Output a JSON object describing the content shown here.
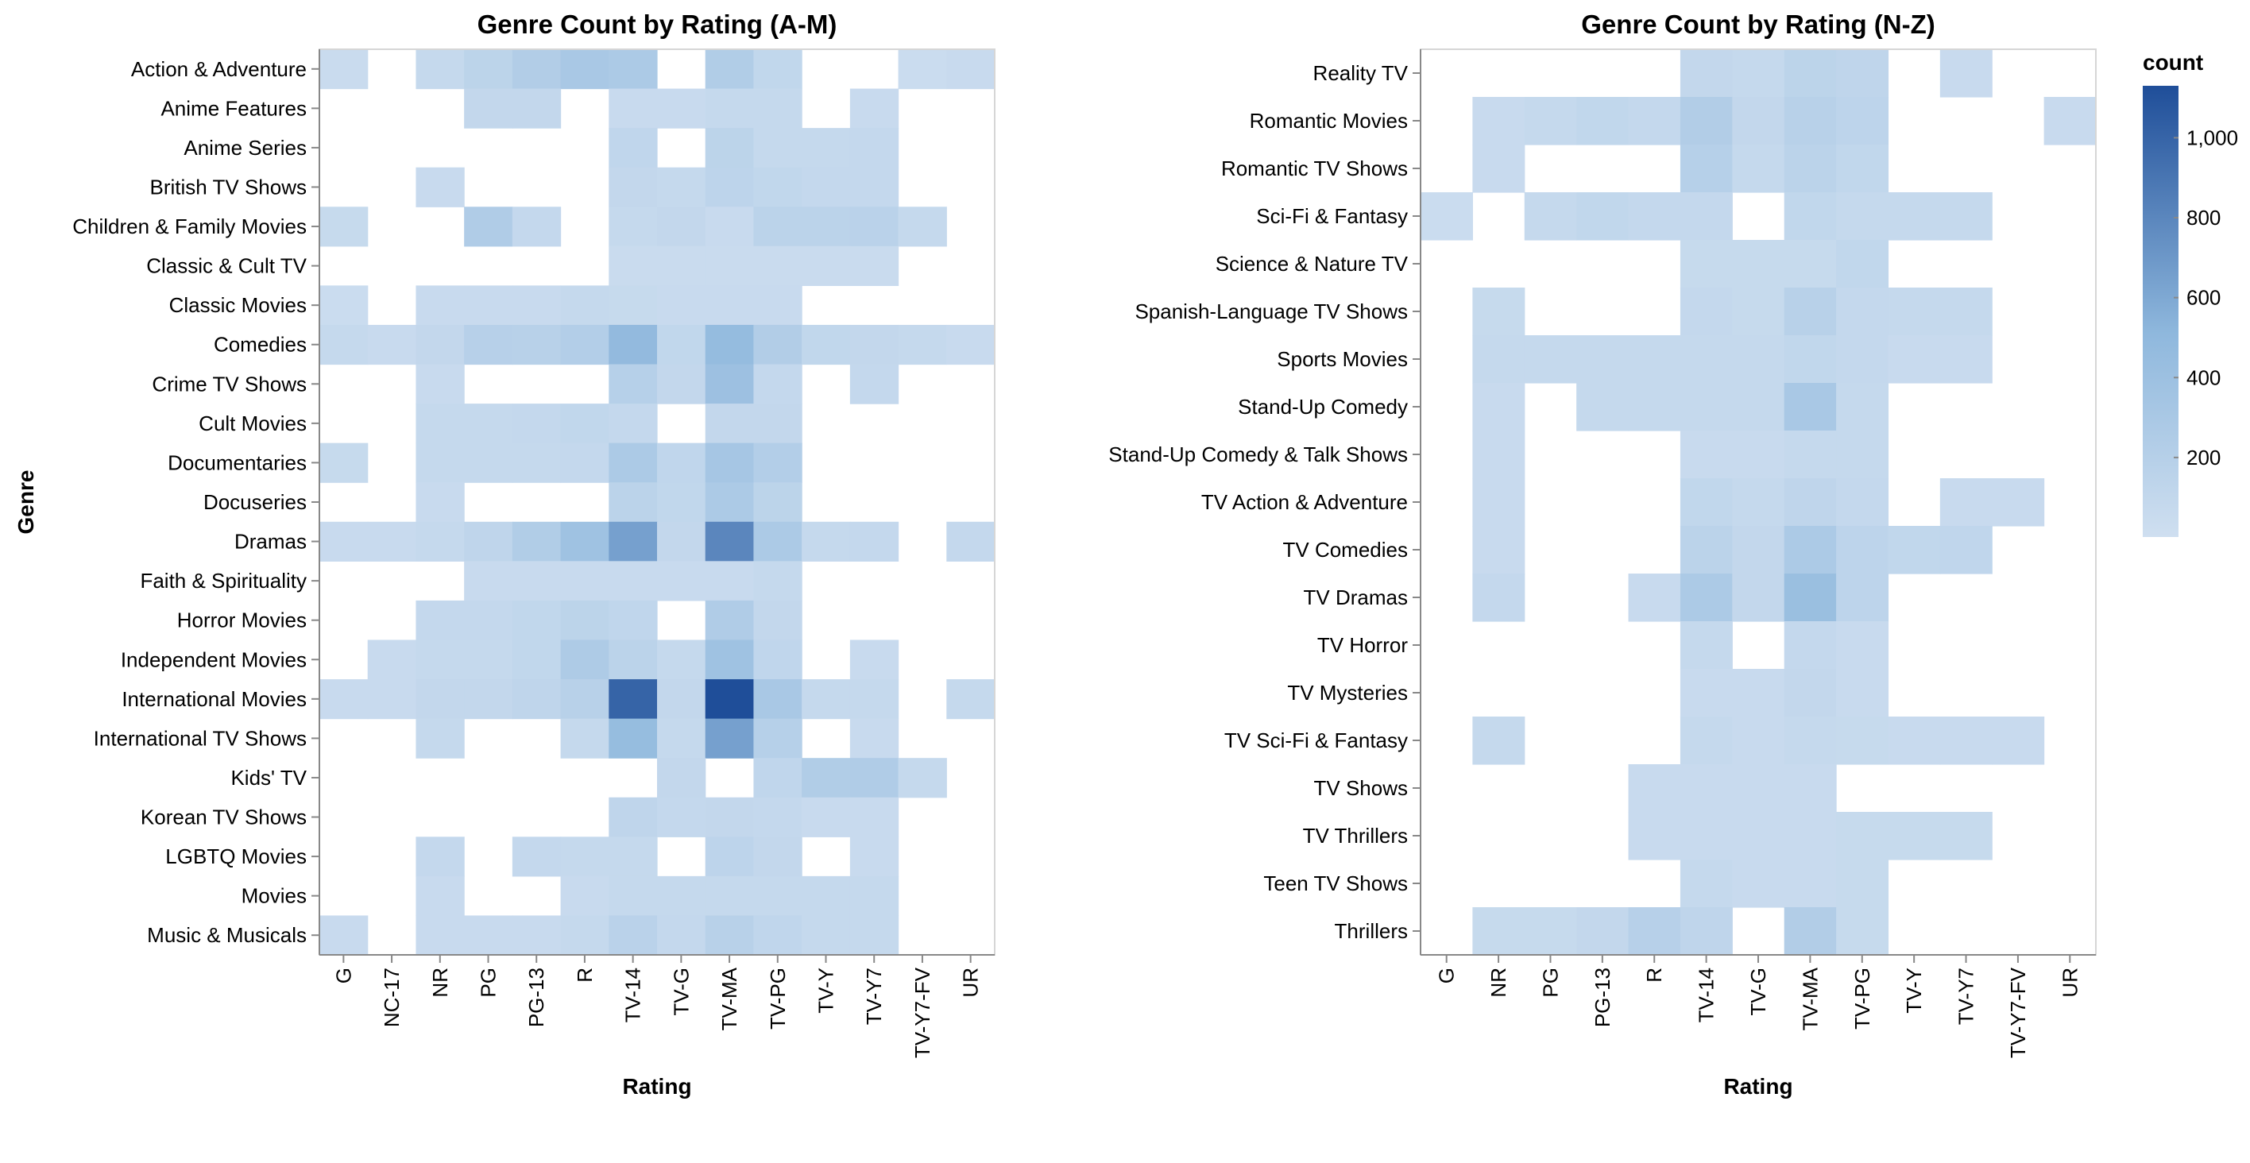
{
  "chart_data": [
    {
      "type": "heatmap",
      "title": "Genre Count by Rating (A-M)",
      "xlabel": "Rating",
      "ylabel": "Genre",
      "x_categories": [
        "G",
        "NC-17",
        "NR",
        "PG",
        "PG-13",
        "R",
        "TV-14",
        "TV-G",
        "TV-MA",
        "TV-PG",
        "TV-Y",
        "TV-Y7",
        "TV-Y7-FV",
        "UR"
      ],
      "y_categories": [
        "Action & Adventure",
        "Anime Features",
        "Anime Series",
        "British TV Shows",
        "Children & Family Movies",
        "Classic & Cult TV",
        "Classic Movies",
        "Comedies",
        "Crime TV Shows",
        "Cult Movies",
        "Documentaries",
        "Docuseries",
        "Dramas",
        "Faith & Spirituality",
        "Horror Movies",
        "Independent Movies",
        "International Movies",
        "International TV Shows",
        "Kids' TV",
        "Korean TV Shows",
        "LGBTQ Movies",
        "Movies",
        "Music & Musicals"
      ],
      "values": [
        [
          50,
          null,
          80,
          150,
          230,
          300,
          280,
          null,
          240,
          110,
          null,
          null,
          40,
          60
        ],
        [
          null,
          null,
          null,
          100,
          100,
          null,
          60,
          60,
          80,
          80,
          null,
          60,
          null,
          null
        ],
        [
          null,
          null,
          null,
          null,
          null,
          null,
          120,
          null,
          150,
          80,
          80,
          90,
          null,
          null
        ],
        [
          null,
          null,
          60,
          null,
          null,
          null,
          100,
          80,
          140,
          110,
          90,
          90,
          null,
          null
        ],
        [
          70,
          null,
          null,
          250,
          90,
          null,
          80,
          100,
          60,
          160,
          160,
          170,
          80,
          null
        ],
        [
          null,
          null,
          null,
          null,
          null,
          null,
          50,
          50,
          50,
          50,
          50,
          50,
          null,
          null
        ],
        [
          40,
          null,
          60,
          60,
          60,
          80,
          70,
          60,
          60,
          60,
          null,
          null,
          null,
          null
        ],
        [
          80,
          60,
          100,
          190,
          180,
          220,
          480,
          110,
          460,
          230,
          110,
          100,
          80,
          60
        ],
        [
          null,
          null,
          60,
          null,
          null,
          null,
          200,
          100,
          400,
          90,
          null,
          90,
          null,
          null
        ],
        [
          null,
          null,
          80,
          80,
          90,
          110,
          90,
          null,
          100,
          100,
          null,
          null,
          null,
          null
        ],
        [
          70,
          null,
          80,
          80,
          80,
          90,
          280,
          120,
          330,
          220,
          null,
          null,
          null,
          null
        ],
        [
          null,
          null,
          60,
          null,
          null,
          null,
          160,
          110,
          280,
          150,
          null,
          null,
          null,
          null
        ],
        [
          60,
          60,
          80,
          130,
          240,
          380,
          650,
          100,
          800,
          280,
          80,
          90,
          null,
          90
        ],
        [
          null,
          null,
          null,
          60,
          60,
          60,
          60,
          60,
          60,
          80,
          null,
          null,
          null,
          null
        ],
        [
          null,
          null,
          90,
          90,
          110,
          150,
          120,
          null,
          250,
          100,
          null,
          null,
          null,
          null
        ],
        [
          null,
          60,
          80,
          80,
          110,
          260,
          160,
          80,
          380,
          120,
          null,
          60,
          null,
          null
        ],
        [
          60,
          60,
          100,
          100,
          130,
          180,
          1000,
          100,
          1130,
          300,
          80,
          80,
          null,
          80
        ],
        [
          null,
          null,
          80,
          null,
          null,
          80,
          450,
          80,
          650,
          200,
          null,
          60,
          null,
          null
        ],
        [
          null,
          null,
          null,
          null,
          null,
          null,
          null,
          100,
          null,
          120,
          240,
          250,
          80,
          null
        ],
        [
          null,
          null,
          null,
          null,
          null,
          null,
          130,
          90,
          100,
          90,
          60,
          60,
          null,
          null
        ],
        [
          null,
          null,
          90,
          null,
          90,
          80,
          80,
          null,
          140,
          100,
          null,
          60,
          null,
          null
        ],
        [
          null,
          null,
          60,
          null,
          null,
          60,
          80,
          80,
          80,
          80,
          80,
          80,
          null,
          null
        ],
        [
          60,
          null,
          60,
          60,
          60,
          80,
          170,
          90,
          180,
          120,
          80,
          80,
          null,
          null
        ]
      ]
    },
    {
      "type": "heatmap",
      "title": "Genre Count by Rating (N-Z)",
      "xlabel": "Rating",
      "ylabel": "",
      "x_categories": [
        "G",
        "NR",
        "PG",
        "PG-13",
        "R",
        "TV-14",
        "TV-G",
        "TV-MA",
        "TV-PG",
        "TV-Y",
        "TV-Y7",
        "TV-Y7-FV",
        "UR"
      ],
      "y_categories": [
        "Reality TV",
        "Romantic Movies",
        "Romantic TV Shows",
        "Sci-Fi & Fantasy",
        "Science & Nature TV",
        "Spanish-Language TV Shows",
        "Sports Movies",
        "Stand-Up Comedy",
        "Stand-Up Comedy & Talk Shows",
        "TV Action & Adventure",
        "TV Comedies",
        "TV Dramas",
        "TV Horror",
        "TV Mysteries",
        "TV Sci-Fi & Fantasy",
        "TV Shows",
        "TV Thrillers",
        "Teen TV Shows",
        "Thrillers"
      ],
      "values": [
        [
          null,
          null,
          null,
          null,
          null,
          100,
          80,
          150,
          130,
          null,
          60,
          null,
          null
        ],
        [
          null,
          60,
          80,
          110,
          90,
          230,
          100,
          180,
          140,
          null,
          null,
          null,
          60
        ],
        [
          null,
          60,
          null,
          null,
          null,
          200,
          80,
          160,
          110,
          null,
          null,
          null,
          null
        ],
        [
          40,
          null,
          80,
          110,
          90,
          90,
          null,
          110,
          80,
          80,
          80,
          null,
          null
        ],
        [
          null,
          null,
          null,
          null,
          null,
          70,
          70,
          70,
          110,
          null,
          null,
          null,
          null
        ],
        [
          null,
          70,
          null,
          null,
          null,
          90,
          70,
          180,
          90,
          80,
          80,
          null,
          null
        ],
        [
          null,
          80,
          80,
          80,
          80,
          80,
          80,
          110,
          90,
          60,
          60,
          null,
          null
        ],
        [
          null,
          60,
          null,
          80,
          80,
          80,
          80,
          300,
          80,
          null,
          null,
          null,
          null
        ],
        [
          null,
          60,
          null,
          null,
          null,
          60,
          60,
          80,
          80,
          null,
          null,
          null,
          null
        ],
        [
          null,
          60,
          null,
          null,
          null,
          110,
          80,
          130,
          90,
          null,
          60,
          60,
          null
        ],
        [
          null,
          60,
          null,
          null,
          null,
          160,
          100,
          280,
          140,
          110,
          120,
          null,
          null
        ],
        [
          null,
          90,
          null,
          null,
          60,
          280,
          100,
          420,
          140,
          null,
          null,
          null,
          null
        ],
        [
          null,
          null,
          null,
          null,
          null,
          80,
          null,
          90,
          60,
          null,
          null,
          null,
          null
        ],
        [
          null,
          null,
          null,
          null,
          null,
          60,
          60,
          100,
          60,
          null,
          null,
          null,
          null
        ],
        [
          null,
          80,
          null,
          null,
          null,
          80,
          60,
          80,
          70,
          60,
          60,
          60,
          null
        ],
        [
          null,
          null,
          null,
          null,
          60,
          60,
          60,
          60,
          null,
          null,
          null,
          null,
          null
        ],
        [
          null,
          null,
          null,
          null,
          60,
          60,
          60,
          60,
          70,
          70,
          70,
          null,
          null
        ],
        [
          null,
          null,
          null,
          null,
          null,
          80,
          60,
          60,
          70,
          null,
          null,
          null,
          null
        ],
        [
          null,
          70,
          70,
          100,
          190,
          130,
          null,
          230,
          70,
          null,
          null,
          null,
          null
        ]
      ]
    }
  ],
  "legend": {
    "title": "count",
    "min": 1,
    "max": 1130,
    "ticks": [
      200,
      400,
      600,
      800,
      1000
    ],
    "tick_labels": [
      "200",
      "400",
      "600",
      "800",
      "1,000"
    ],
    "color_low": "#cfdff0",
    "color_high": "#1f4e99"
  }
}
